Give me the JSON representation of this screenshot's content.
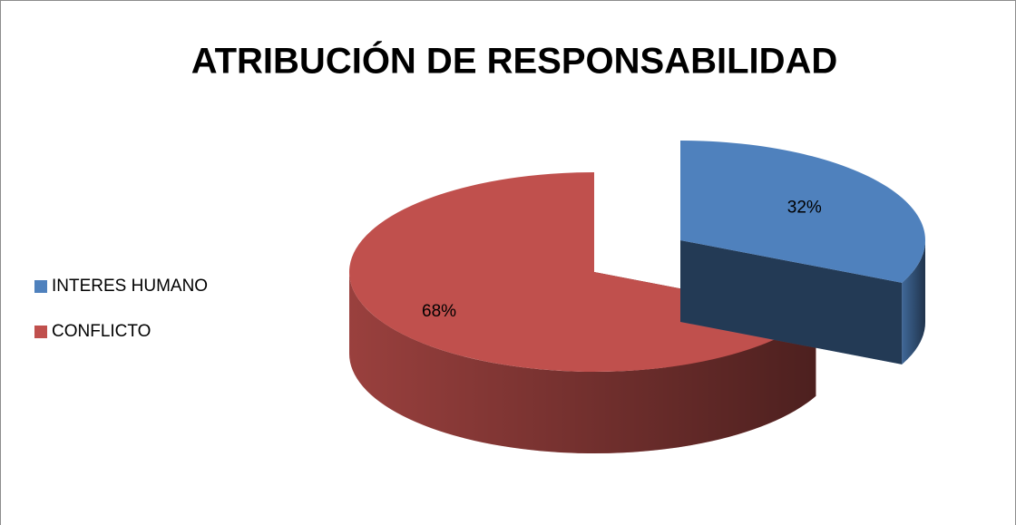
{
  "chart_data": {
    "type": "pie",
    "title": "ATRIBUCIÓN DE RESPONSABILIDAD",
    "categories": [
      "INTERES HUMANO",
      "CONFLICTO"
    ],
    "values": [
      32,
      68
    ],
    "value_labels": [
      "32%",
      "68%"
    ],
    "colors": [
      "#4f81bd",
      "#c0504d"
    ],
    "legend": "left"
  }
}
